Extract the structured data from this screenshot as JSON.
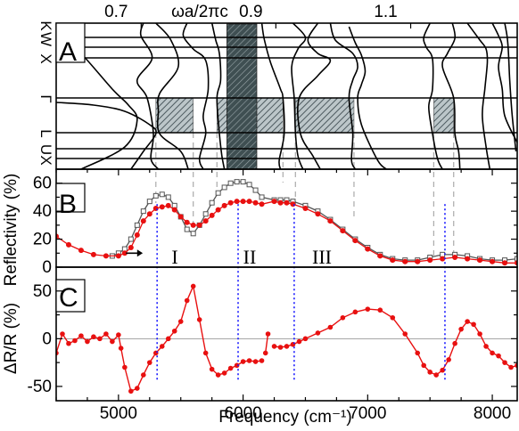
{
  "chart_data": [
    {
      "panel": "A",
      "type": "line",
      "description_label": "A",
      "top_axis_label": "ωa/2πc",
      "top_ticks": [
        "0.7",
        "0.9",
        "1.1"
      ],
      "top_tick_positions_freq": [
        5182,
        6263,
        7345
      ],
      "k_points": [
        {
          "label": "K",
          "rotation": 90
        },
        {
          "label": "W",
          "rotation": 90
        },
        {
          "label": "X",
          "rotation": 90
        },
        {
          "label": "Γ",
          "rotation": 90
        },
        {
          "label": "L",
          "rotation": 90
        },
        {
          "label": "U",
          "rotation": 90
        },
        {
          "label": "X",
          "rotation": 90
        }
      ],
      "gaps_freq": [
        {
          "x0": 5300,
          "x1": 5600,
          "kind": "partial"
        },
        {
          "x0": 5790,
          "x1": 6320,
          "kind": "partial"
        },
        {
          "x0": 5870,
          "x1": 6110,
          "kind": "full"
        },
        {
          "x0": 6420,
          "x1": 6890,
          "kind": "partial"
        },
        {
          "x0": 7530,
          "x1": 7690,
          "kind": "partial"
        }
      ]
    },
    {
      "panel": "B",
      "type": "line",
      "description_label": "B",
      "ylabel": "Reflectivity (%)",
      "ylim": [
        0,
        70
      ],
      "yticks": [
        "0",
        "20",
        "40",
        "60"
      ],
      "region_labels": [
        "I",
        "II",
        "III"
      ],
      "series": [
        {
          "color": "#e81010",
          "marker": "filled-circle",
          "x": [
            4500,
            4600,
            4700,
            4800,
            4900,
            5000,
            5050,
            5100,
            5150,
            5200,
            5250,
            5300,
            5350,
            5400,
            5450,
            5500,
            5550,
            5600,
            5650,
            5700,
            5750,
            5800,
            5850,
            5900,
            5950,
            6000,
            6050,
            6100,
            6150,
            6250,
            6300,
            6350,
            6400,
            6500,
            6600,
            6700,
            6800,
            6900,
            7000,
            7100,
            7200,
            7300,
            7400,
            7500,
            7600,
            7700,
            7800,
            7900,
            8000,
            8100,
            8200
          ],
          "y": [
            22,
            16,
            12,
            9,
            8,
            8,
            10,
            14,
            23,
            33,
            38,
            42,
            43,
            44,
            41,
            36,
            32,
            30,
            30,
            33,
            37,
            41,
            44,
            46,
            47,
            47,
            47,
            46,
            45,
            47,
            46,
            46,
            45,
            42,
            38,
            33,
            26,
            19,
            13,
            8,
            5,
            4,
            4,
            5,
            6,
            7,
            6,
            5,
            4,
            3,
            3
          ]
        },
        {
          "color": "#555555",
          "marker": "open-square",
          "x": [
            4950,
            5000,
            5050,
            5100,
            5150,
            5200,
            5250,
            5300,
            5350,
            5400,
            5450,
            5500,
            5550,
            5600,
            5650,
            5700,
            5750,
            5800,
            5850,
            5900,
            5950,
            6000,
            6050,
            6100,
            6150,
            6250,
            6300,
            6350,
            6400,
            6500,
            6600,
            6700,
            6800,
            6900,
            7000,
            7100,
            7200,
            7300,
            7400,
            7500,
            7600,
            7700,
            7800,
            7900,
            8000,
            8100,
            8200
          ],
          "y": [
            8,
            10,
            13,
            20,
            30,
            40,
            47,
            51,
            52,
            50,
            44,
            36,
            27,
            24,
            30,
            38,
            46,
            53,
            57,
            60,
            61,
            61,
            59,
            55,
            50,
            48,
            48,
            48,
            47,
            44,
            40,
            34,
            27,
            20,
            14,
            9,
            6,
            5,
            5,
            7,
            9,
            9,
            8,
            6,
            5,
            5,
            6
          ]
        }
      ]
    },
    {
      "panel": "C",
      "type": "line",
      "description_label": "C",
      "ylabel": "ΔR/R (%)",
      "ylim": [
        -65,
        75
      ],
      "yticks": [
        "50",
        "0",
        "-50"
      ],
      "xlabel": "Frequency (cm⁻¹)",
      "xlim": [
        4500,
        8200
      ],
      "xticks": [
        "5000",
        "6000",
        "7000",
        "8000"
      ],
      "series": [
        {
          "color": "#e81010",
          "marker": "filled-circle",
          "x": [
            4500,
            4550,
            4600,
            4650,
            4700,
            4750,
            4800,
            4850,
            4900,
            4950,
            5000,
            5020,
            5050,
            5100,
            5150,
            5200,
            5250,
            5300,
            5350,
            5400,
            5450,
            5500,
            5550,
            5600,
            5650,
            5700,
            5750,
            5800,
            5850,
            5900,
            5950,
            6000,
            6050,
            6100,
            6150
          ],
          "y": [
            -15,
            5,
            -5,
            -2,
            3,
            -3,
            2,
            0,
            5,
            -3,
            4,
            -10,
            -30,
            -55,
            -52,
            -38,
            -25,
            -15,
            -8,
            0,
            8,
            18,
            40,
            55,
            20,
            -15,
            -32,
            -38,
            -36,
            -31,
            -28,
            -24,
            -23,
            -24,
            -23
          ]
        },
        {
          "color": "#e81010",
          "marker": "filled-circle",
          "x": [
            6180,
            6200
          ],
          "y": [
            -15,
            5
          ]
        },
        {
          "color": "#e81010",
          "marker": "filled-circle",
          "x": [
            6250,
            6300,
            6350,
            6400,
            6450,
            6500,
            6600,
            6700,
            6800,
            6900,
            7000,
            7100,
            7200,
            7300,
            7400,
            7450,
            7500,
            7550,
            7600,
            7650,
            7700,
            7750,
            7800,
            7850,
            7900,
            7950,
            8000,
            8050,
            8100,
            8150,
            8200
          ],
          "y": [
            -8,
            -9,
            -8,
            -6,
            -3,
            0,
            6,
            12,
            22,
            28,
            31,
            30,
            22,
            5,
            -15,
            -28,
            -35,
            -38,
            -33,
            -22,
            -5,
            10,
            18,
            15,
            5,
            -8,
            -15,
            -18,
            -25,
            -30,
            -28
          ]
        }
      ]
    }
  ]
}
